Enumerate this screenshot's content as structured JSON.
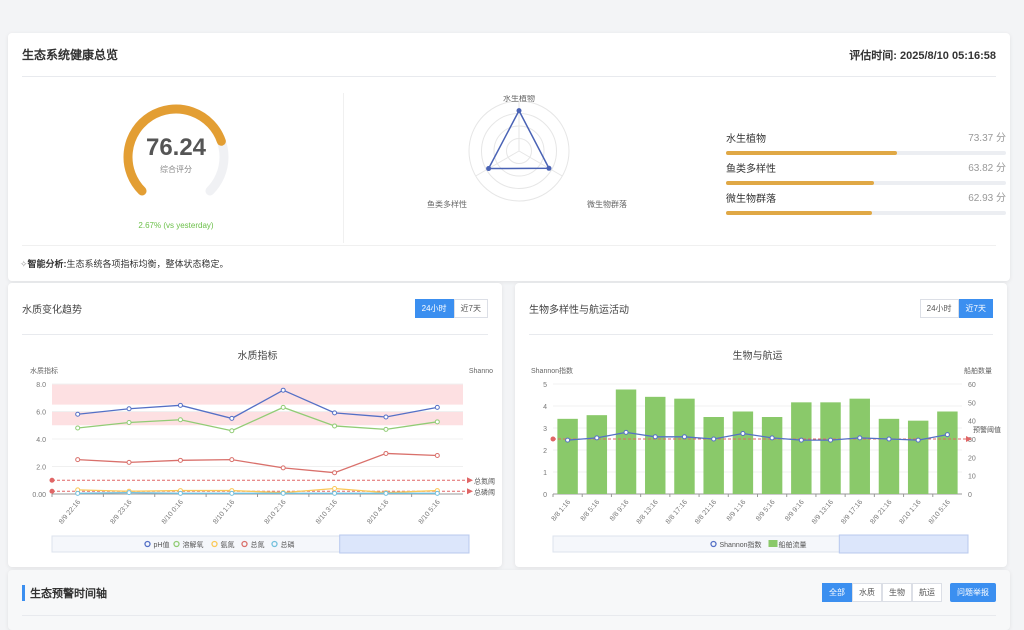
{
  "overview": {
    "title": "生态系统健康总览",
    "eval_time": "评估时间: 2025/8/10 05:16:58",
    "score": "76.24",
    "score_value": 76.24,
    "score_label": "综合评分",
    "change": "2.67% (vs yesterday)",
    "radar": {
      "axes": [
        "水生植物",
        "微生物群落",
        "鱼类多样性"
      ],
      "values": [
        73.37,
        62.93,
        63.82
      ]
    },
    "bars": [
      {
        "label": "水生植物",
        "value": "73.37 分",
        "pct": 73.37
      },
      {
        "label": "鱼类多样性",
        "value": "63.82 分",
        "pct": 63.82
      },
      {
        "label": "微生物群落",
        "value": "62.93 分",
        "pct": 62.93
      }
    ],
    "analysis_label": "智能分析:",
    "analysis_text": "生态系统各项指标均衡，整体状态稳定。"
  },
  "water": {
    "title": "水质变化趋势",
    "tabs": [
      "24小时",
      "近7天"
    ],
    "active": 0
  },
  "bio": {
    "title": "生物多样性与航运活动",
    "tabs": [
      "24小时",
      "近7天"
    ],
    "active": 1
  },
  "timeline": {
    "title": "生态预警时间轴",
    "filters": [
      "全部",
      "水质",
      "生物",
      "航运"
    ],
    "report": "问题举报"
  },
  "chart_data": [
    {
      "type": "line",
      "title": "水质指标",
      "ylabel": "水质指标",
      "ylabel_right": "Shanno",
      "ylim": [
        0,
        8
      ],
      "yticks": [
        "0.00",
        "2.0",
        "4.0",
        "6.0",
        "8.0"
      ],
      "x": [
        "8/9 22:16",
        "8/9 23:16",
        "8/10 0:16",
        "8/10 1:16",
        "8/10 2:16",
        "8/10 3:16",
        "8/10 4:16",
        "8/10 5:16"
      ],
      "series": [
        {
          "name": "pH值",
          "color": "#5470c6",
          "values": [
            5.8,
            6.2,
            6.45,
            5.5,
            7.55,
            5.9,
            5.6,
            6.3
          ]
        },
        {
          "name": "溶解氧",
          "color": "#91cc75",
          "values": [
            4.8,
            5.2,
            5.4,
            4.6,
            6.3,
            4.95,
            4.7,
            5.25
          ]
        },
        {
          "name": "氨氮",
          "color": "#fac858",
          "values": [
            0.3,
            0.2,
            0.25,
            0.25,
            0.1,
            0.4,
            0.1,
            0.25
          ]
        },
        {
          "name": "总氮",
          "color": "#d9706b",
          "values": [
            2.5,
            2.3,
            2.45,
            2.5,
            1.9,
            1.55,
            2.95,
            2.8
          ]
        },
        {
          "name": "总磷",
          "color": "#73c0de",
          "values": [
            0.05,
            0.1,
            0.05,
            0.05,
            0.05,
            0.05,
            0.05,
            0.05
          ]
        }
      ],
      "bands": [
        [
          6.5,
          8.0
        ],
        [
          5.0,
          6.0
        ]
      ],
      "thresholds": [
        {
          "label": "总氮阈",
          "value": 1.0
        },
        {
          "label": "总磷阈",
          "value": 0.2
        }
      ]
    },
    {
      "type": "bar",
      "title": "生物与航运",
      "ylabel": "Shannon指数",
      "ylabel_right": "船舶数量",
      "ylim": [
        0,
        5
      ],
      "ylim_right": [
        0,
        60
      ],
      "yticks": [
        "0",
        "1",
        "2",
        "3",
        "4",
        "5"
      ],
      "yticks_right": [
        "0",
        "10",
        "20",
        "30",
        "40",
        "50",
        "60"
      ],
      "x": [
        "8/8 1:16",
        "8/8 5:16",
        "8/8 9:16",
        "8/8 13:16",
        "8/8 17:16",
        "8/8 21:16",
        "8/9 1:16",
        "8/9 5:16",
        "8/9 9:16",
        "8/9 13:16",
        "8/9 17:16",
        "8/9 21:16",
        "8/10 1:16",
        "8/10 5:16"
      ],
      "series": [
        {
          "name": "Shannon指数",
          "color": "#5470c6",
          "values": [
            2.45,
            2.55,
            2.8,
            2.6,
            2.6,
            2.5,
            2.75,
            2.55,
            2.45,
            2.45,
            2.55,
            2.5,
            2.45,
            2.7
          ]
        },
        {
          "name": "船舶流量",
          "color": "#8ac96a",
          "values": [
            41,
            43,
            57,
            53,
            52,
            42,
            45,
            42,
            50,
            50,
            52,
            41,
            40,
            45
          ]
        }
      ],
      "thresholds": [
        {
          "label": "预警阈值",
          "value": 2.5
        }
      ]
    }
  ]
}
